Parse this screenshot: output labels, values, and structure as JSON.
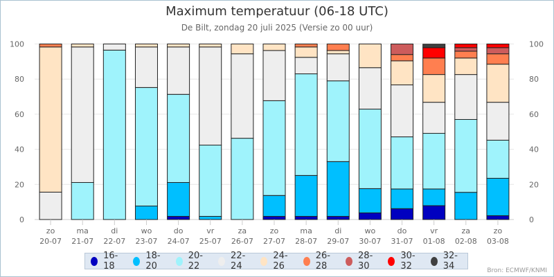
{
  "chart_data": {
    "type": "bar",
    "stacked": true,
    "stack_mode": "percent",
    "title": "Maximum temperatuur (06-18 UTC)",
    "subtitle": "De Bilt, zondag 20 juli 2025 (Versie zo 00 uur)",
    "xlabel": "",
    "ylabel": "",
    "ylim": [
      0,
      100
    ],
    "yticks": [
      0,
      20,
      40,
      60,
      80,
      100
    ],
    "grid": true,
    "y_axis_both_sides": true,
    "legend_position": "bottom",
    "categories": [
      [
        "zo",
        "20-07"
      ],
      [
        "ma",
        "21-07"
      ],
      [
        "di",
        "22-07"
      ],
      [
        "wo",
        "23-07"
      ],
      [
        "do",
        "24-07"
      ],
      [
        "vr",
        "25-07"
      ],
      [
        "za",
        "26-07"
      ],
      [
        "zo",
        "27-07"
      ],
      [
        "ma",
        "28-07"
      ],
      [
        "di",
        "29-07"
      ],
      [
        "wo",
        "30-07"
      ],
      [
        "do",
        "31-07"
      ],
      [
        "vr",
        "01-08"
      ],
      [
        "za",
        "02-08"
      ],
      [
        "zo",
        "03-08"
      ]
    ],
    "series": [
      {
        "name": "16-18",
        "color": "#0000c0",
        "values": [
          0,
          0,
          0,
          0,
          1.8,
          0,
          0,
          1.8,
          1.8,
          1.8,
          3.8,
          6.2,
          7.9,
          0,
          2.2
        ]
      },
      {
        "name": "18-20",
        "color": "#00bfff",
        "values": [
          0,
          0,
          0,
          7.7,
          19.3,
          1.8,
          0,
          11.9,
          23.3,
          31.2,
          13.8,
          11.2,
          9.5,
          15.5,
          21.3
        ]
      },
      {
        "name": "20-22",
        "color": "#9ff3fc",
        "values": [
          0,
          21.1,
          96.5,
          67.5,
          50.2,
          40.6,
          46.3,
          54.0,
          57.9,
          46.0,
          45.3,
          29.7,
          31.7,
          41.5,
          21.7
        ]
      },
      {
        "name": "22-24",
        "color": "#eeeeee",
        "values": [
          15.6,
          77.2,
          3.5,
          23.1,
          27.0,
          55.9,
          48.1,
          28.6,
          9.4,
          15.4,
          23.6,
          29.6,
          17.7,
          25.6,
          21.6
        ]
      },
      {
        "name": "24-26",
        "color": "#ffe4c4",
        "values": [
          82.7,
          1.7,
          0,
          1.7,
          1.7,
          1.7,
          5.6,
          3.7,
          5.9,
          1.9,
          13.5,
          13.7,
          15.8,
          9.4,
          21.7
        ]
      },
      {
        "name": "26-28",
        "color": "#ff7f50",
        "values": [
          1.7,
          0,
          0,
          0,
          0,
          0,
          0,
          0,
          1.7,
          3.7,
          0,
          3.6,
          9.4,
          3.9,
          5.9
        ]
      },
      {
        "name": "28-30",
        "color": "#cd5c5c",
        "values": [
          0,
          0,
          0,
          0,
          0,
          0,
          0,
          0,
          0,
          0,
          0,
          6.0,
          0,
          2.0,
          3.5
        ]
      },
      {
        "name": "30-32",
        "color": "#ff0000",
        "values": [
          0,
          0,
          0,
          0,
          0,
          0,
          0,
          0,
          0,
          0,
          0,
          0,
          5.9,
          2.1,
          2.1
        ]
      },
      {
        "name": "32-34",
        "color": "#404040",
        "values": [
          0,
          0,
          0,
          0,
          0,
          0,
          0,
          0,
          0,
          0,
          0,
          0,
          2.0,
          0,
          0
        ]
      }
    ]
  },
  "credits": "Bron: ECMWF/KNMI"
}
